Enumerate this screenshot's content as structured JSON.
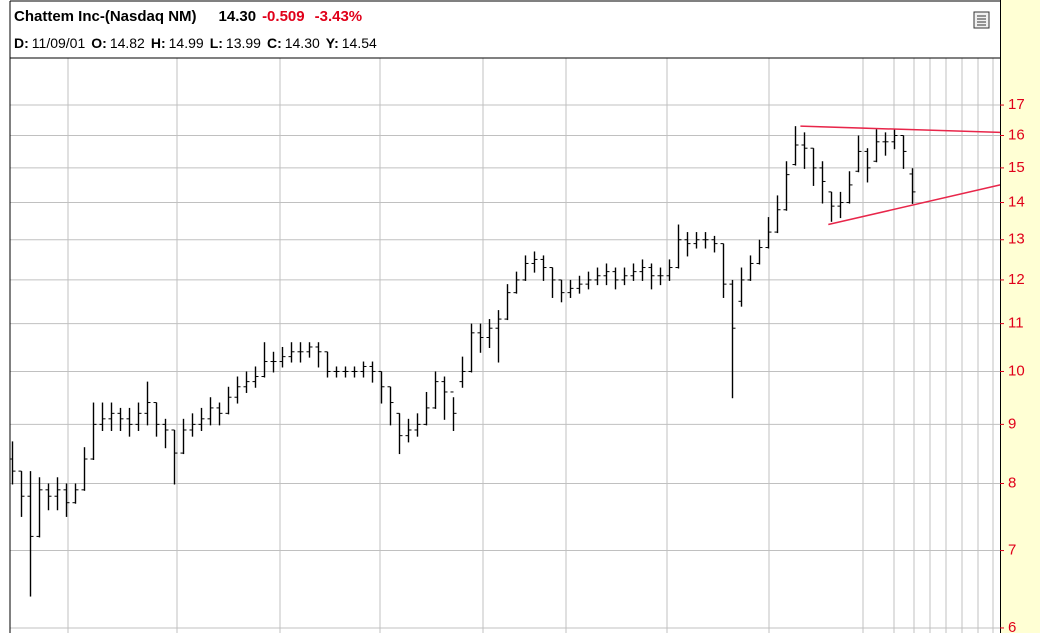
{
  "chart_data": {
    "type": "ohlc",
    "title": "Chattem Inc-(Nasdaq NM)",
    "last": "14.30",
    "change": "-0.509",
    "change_pct": "-3.43%",
    "info": [
      {
        "label": "D:",
        "value": "11/09/01"
      },
      {
        "label": "O:",
        "value": "14.82"
      },
      {
        "label": "H:",
        "value": "14.99"
      },
      {
        "label": "L:",
        "value": "13.99"
      },
      {
        "label": "C:",
        "value": "14.30"
      },
      {
        "label": "Y:",
        "value": "14.54"
      }
    ],
    "color": "#000000",
    "log_scale": true,
    "grid": true,
    "ylim": [
      5.94,
      18.67
    ],
    "yticks": [
      6,
      7,
      8,
      9,
      10,
      11,
      12,
      13,
      14,
      15,
      16,
      17
    ],
    "open": [
      8.4,
      8.2,
      7.8,
      7.2,
      7.9,
      7.8,
      7.9,
      7.7,
      7.9,
      8.4,
      9.0,
      9.1,
      9.2,
      9.1,
      9.0,
      9.2,
      9.4,
      9.0,
      8.9,
      8.5,
      8.9,
      9.0,
      9.1,
      9.3,
      9.2,
      9.5,
      9.7,
      9.8,
      9.9,
      10.2,
      10.2,
      10.3,
      10.4,
      10.4,
      10.5,
      10.4,
      10.0,
      10.0,
      10.0,
      10.0,
      10.1,
      10.0,
      9.7,
      9.2,
      8.8,
      8.9,
      9.0,
      9.3,
      9.8,
      9.6,
      9.8,
      10.0,
      10.8,
      10.7,
      10.9,
      11.1,
      11.7,
      12.0,
      12.4,
      12.5,
      12.3,
      12.0,
      11.7,
      11.8,
      11.9,
      12.0,
      12.1,
      12.2,
      12.0,
      12.1,
      12.2,
      12.3,
      12.1,
      12.1,
      12.3,
      13.0,
      12.9,
      13.0,
      13.0,
      12.9,
      11.9,
      11.5,
      12.0,
      12.4,
      12.8,
      13.2,
      13.8,
      15.1,
      15.7,
      15.6,
      15.0,
      14.3,
      13.9,
      14.0,
      14.9,
      15.5,
      15.2,
      15.8,
      15.8,
      16.0,
      14.82
    ],
    "high": [
      8.7,
      8.2,
      8.2,
      8.1,
      8.0,
      8.1,
      8.0,
      8.0,
      8.6,
      9.4,
      9.4,
      9.4,
      9.3,
      9.3,
      9.4,
      9.8,
      9.4,
      9.1,
      8.9,
      9.1,
      9.2,
      9.3,
      9.5,
      9.4,
      9.7,
      9.9,
      10.0,
      10.1,
      10.6,
      10.4,
      10.5,
      10.6,
      10.6,
      10.6,
      10.6,
      10.4,
      10.1,
      10.1,
      10.1,
      10.2,
      10.2,
      10.0,
      9.7,
      9.2,
      9.1,
      9.2,
      9.6,
      10.0,
      9.9,
      9.5,
      10.3,
      11.0,
      11.0,
      11.1,
      11.3,
      11.9,
      12.2,
      12.6,
      12.7,
      12.6,
      12.3,
      12.0,
      12.0,
      12.1,
      12.2,
      12.3,
      12.4,
      12.3,
      12.3,
      12.4,
      12.5,
      12.4,
      12.3,
      12.5,
      13.4,
      13.2,
      13.2,
      13.2,
      13.1,
      12.9,
      12.0,
      12.3,
      12.6,
      13.0,
      13.6,
      14.2,
      15.2,
      16.3,
      16.1,
      15.6,
      15.2,
      14.3,
      14.3,
      14.9,
      16.0,
      15.6,
      16.2,
      16.1,
      16.2,
      16.0,
      14.99
    ],
    "low": [
      8.0,
      7.5,
      6.4,
      7.2,
      7.6,
      7.6,
      7.5,
      7.7,
      7.9,
      8.4,
      8.9,
      8.9,
      8.9,
      8.8,
      8.9,
      9.0,
      8.8,
      8.6,
      8.0,
      8.5,
      8.8,
      8.9,
      9.0,
      9.0,
      9.2,
      9.4,
      9.6,
      9.7,
      9.9,
      10.0,
      10.1,
      10.2,
      10.2,
      10.3,
      10.1,
      9.9,
      9.9,
      9.9,
      9.9,
      9.9,
      9.8,
      9.4,
      9.0,
      8.5,
      8.7,
      8.8,
      9.0,
      9.3,
      9.1,
      8.9,
      9.7,
      10.0,
      10.4,
      10.5,
      10.2,
      11.1,
      11.7,
      12.0,
      12.2,
      12.0,
      11.6,
      11.5,
      11.6,
      11.7,
      11.8,
      11.9,
      11.9,
      11.8,
      11.9,
      12.0,
      12.0,
      11.8,
      11.9,
      12.0,
      12.3,
      12.6,
      12.8,
      12.8,
      12.7,
      11.6,
      9.5,
      11.4,
      12.0,
      12.4,
      12.8,
      13.2,
      13.8,
      15.1,
      15.0,
      14.5,
      14.0,
      13.5,
      13.6,
      14.0,
      14.9,
      14.6,
      15.2,
      15.4,
      15.6,
      15.0,
      13.99
    ],
    "close": [
      8.2,
      7.8,
      7.2,
      7.9,
      7.8,
      7.9,
      7.7,
      7.9,
      8.4,
      9.0,
      9.1,
      9.2,
      9.1,
      9.0,
      9.2,
      9.4,
      9.0,
      8.9,
      8.5,
      8.9,
      9.0,
      9.1,
      9.3,
      9.2,
      9.5,
      9.7,
      9.8,
      9.9,
      10.2,
      10.2,
      10.3,
      10.4,
      10.4,
      10.5,
      10.4,
      10.0,
      10.0,
      10.0,
      10.0,
      10.1,
      10.0,
      9.7,
      9.4,
      8.8,
      8.9,
      9.0,
      9.3,
      9.8,
      9.6,
      9.2,
      10.0,
      10.8,
      10.7,
      10.9,
      11.1,
      11.7,
      12.0,
      12.4,
      12.5,
      12.3,
      12.0,
      11.7,
      11.8,
      11.9,
      12.0,
      12.1,
      12.2,
      12.0,
      12.1,
      12.2,
      12.3,
      12.1,
      12.1,
      12.3,
      13.0,
      12.9,
      13.0,
      13.0,
      12.9,
      11.9,
      10.9,
      12.0,
      12.4,
      12.8,
      13.2,
      13.8,
      14.8,
      15.7,
      15.6,
      15.0,
      14.6,
      13.9,
      14.0,
      14.5,
      15.5,
      15.0,
      15.8,
      15.8,
      16.0,
      15.5,
      14.3
    ],
    "trendlines": [
      {
        "color": "#e8264a",
        "x": [
          87.6,
          109.8
        ],
        "values": [
          16.3,
          16.1
        ]
      },
      {
        "color": "#e8264a",
        "x": [
          90.7,
          109.8
        ],
        "values": [
          13.4,
          14.5
        ]
      }
    ]
  }
}
